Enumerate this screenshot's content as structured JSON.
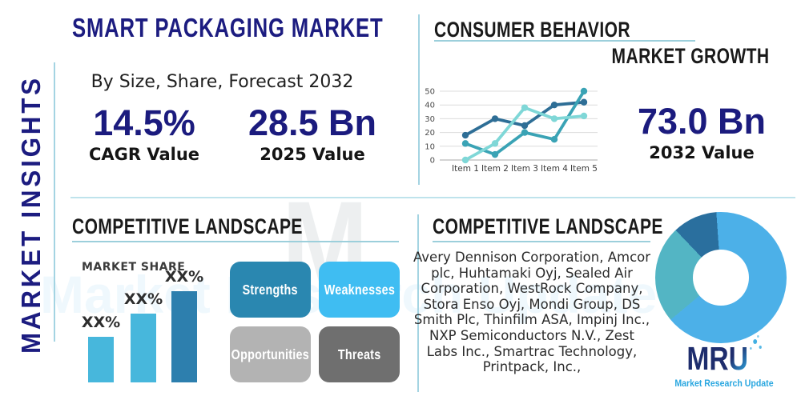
{
  "sidebar": {
    "vertical_label": "MARKET INSIGHTS"
  },
  "header": {
    "title": "SMART PACKAGING MARKET",
    "subtitle": "By Size, Share, Forecast 2032"
  },
  "stats": {
    "cagr_value": "14.5%",
    "cagr_label": "CAGR Value",
    "value_2025": "28.5 Bn",
    "label_2025": "2025 Value",
    "value_2032": "73.0 Bn",
    "label_2032": "2032 Value"
  },
  "consumer_behavior": {
    "title": "CONSUMER BEHAVIOR",
    "subtitle": "MARKET GROWTH"
  },
  "competitive_left": {
    "title": "COMPETITIVE LANDSCAPE",
    "market_share_label": "MARKET SHARE"
  },
  "swot": {
    "strengths": "Strengths",
    "weaknesses": "Weaknesses",
    "opportunities": "Opportunities",
    "threats": "Threats"
  },
  "competitive_right": {
    "title": "COMPETITIVE LANDSCAPE",
    "companies": "Avery Dennison Corporation, Amcor plc, Huhtamaki Oyj, Sealed Air Corporation, WestRock Company, Stora Enso Oyj, Mondi Group, DS Smith Plc, Thinfilm ASA, Impinj Inc., NXP Semiconductors N.V., Zest Labs Inc., Smartrac Technology, Printpack, Inc.,"
  },
  "brand": {
    "logo_mr": "MR",
    "logo_u": "U",
    "tagline": "Market Research Update",
    "watermark_letter": "M"
  },
  "colors": {
    "navy": "#1b1b7e",
    "heading_black": "#1a1a1a",
    "accent_line": "#a4d4e2",
    "underline": "#9ccfdb",
    "swot_strengths": "#2a87b0",
    "swot_weaknesses": "#3fbdf2",
    "swot_opportunities": "#b3b3b3",
    "swot_threats": "#6f6f6f",
    "logo_navy": "#1e2d6d",
    "logo_cyan": "#2aa7e0"
  },
  "chart_data": [
    {
      "type": "line",
      "title": "CONSUMER BEHAVIOR / MARKET GROWTH",
      "x": [
        "Item 1",
        "Item 2",
        "Item 3",
        "Item 4",
        "Item 5"
      ],
      "series": [
        {
          "name": "series-dark-blue",
          "color": "#2e6e96",
          "values": [
            18,
            30,
            25,
            40,
            42
          ]
        },
        {
          "name": "series-teal",
          "color": "#3aa3b5",
          "values": [
            12,
            4,
            20,
            15,
            50
          ]
        },
        {
          "name": "series-aqua",
          "color": "#7fd7d7",
          "values": [
            0,
            12,
            38,
            30,
            32
          ]
        }
      ],
      "ylim": [
        0,
        50
      ],
      "yticks": [
        0,
        10,
        20,
        30,
        40,
        50
      ],
      "grid": true,
      "legend": "none"
    },
    {
      "type": "bar",
      "title": "MARKET SHARE",
      "categories": [
        "XX%",
        "XX%",
        "XX%"
      ],
      "values": [
        50,
        75,
        100
      ],
      "value_note": "relative bar heights; data labels masked as XX% in source",
      "colors": [
        "#47b7dc",
        "#47b7dc",
        "#2d7fae"
      ]
    },
    {
      "type": "pie",
      "donut": true,
      "rotation_deg": -4,
      "slices": [
        {
          "name": "share-light-blue",
          "value": 65,
          "color": "#4cb0e8"
        },
        {
          "name": "share-teal",
          "value": 24,
          "color": "#53b5c4"
        },
        {
          "name": "share-dark-blue",
          "value": 11,
          "color": "#2a6f9e"
        }
      ]
    }
  ]
}
